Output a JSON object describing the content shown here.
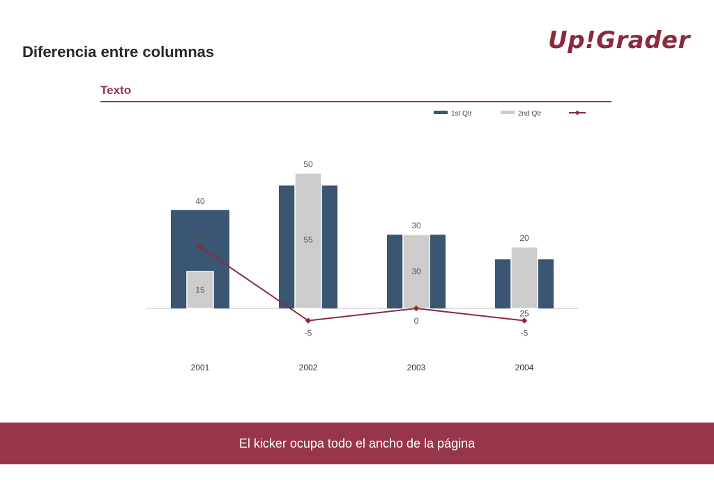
{
  "page": {
    "title": "Diferencia entre columnas",
    "logo_text": "Up!Grader",
    "section_title": "Texto",
    "kicker": "El kicker ocupa todo el ancho de la página"
  },
  "colors": {
    "accent": "#97354a",
    "series_1": "#3a5673",
    "series_2": "#cccccc",
    "line": "#8b2a3c"
  },
  "chart_data": {
    "type": "bar",
    "categories": [
      "2001",
      "2002",
      "2003",
      "2004"
    ],
    "series": [
      {
        "name": "1st Qtr",
        "kind": "bar",
        "values": [
          40,
          50,
          30,
          20
        ]
      },
      {
        "name": "2nd Qtr",
        "kind": "bar",
        "values": [
          15,
          55,
          30,
          25
        ]
      },
      {
        "name": "",
        "kind": "line",
        "values": [
          25,
          -5,
          0,
          -5
        ]
      }
    ],
    "legend_position": "top-right",
    "grid": false
  }
}
